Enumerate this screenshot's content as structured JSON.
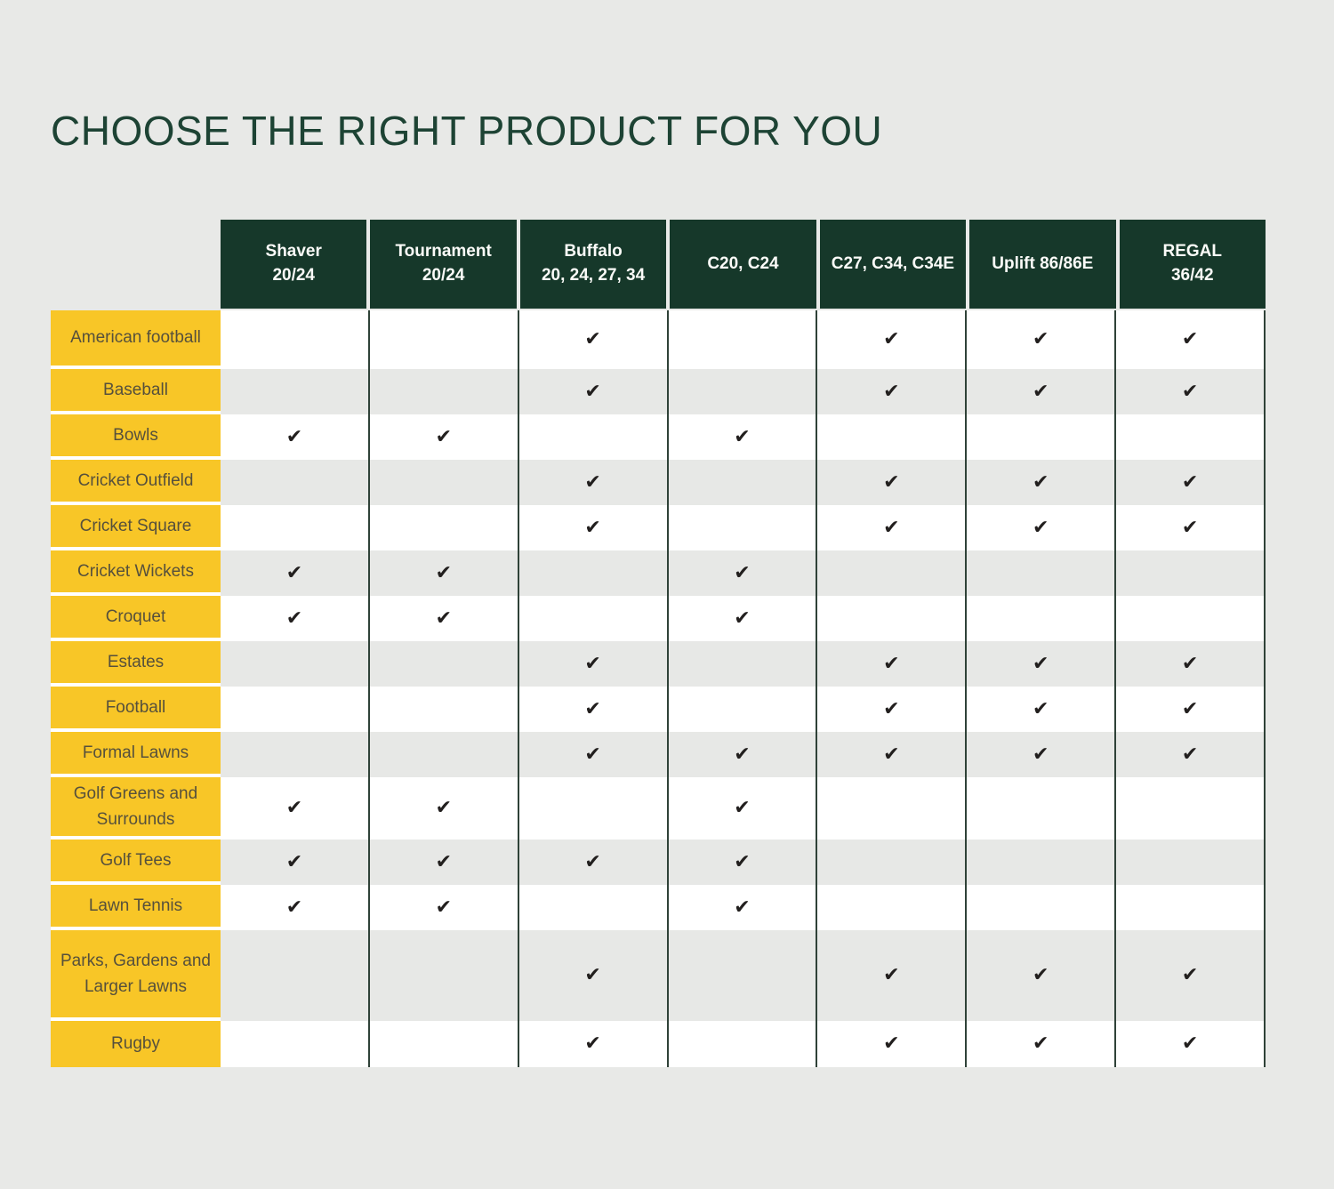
{
  "title": "CHOOSE THE RIGHT PRODUCT FOR YOU",
  "colors": {
    "page_background": "#e8e9e7",
    "header_green": "#16382a",
    "title_green": "#1d4334",
    "label_yellow": "#f8c627",
    "label_text": "#56503c",
    "row_white": "#ffffff",
    "row_gray": "#e7e8e6",
    "column_divider": "#2f4238",
    "check_black": "#221f1e",
    "header_text": "#fbfbf8"
  },
  "chart_data": {
    "type": "table",
    "title": "CHOOSE THE RIGHT PRODUCT FOR YOU",
    "check_glyph": "✔",
    "columns": [
      {
        "label": "Shaver 20/24",
        "lines": [
          "Shaver",
          "20/24"
        ]
      },
      {
        "label": "Tournament 20/24",
        "lines": [
          "Tournament",
          "20/24"
        ]
      },
      {
        "label": "Buffalo 20, 24, 27, 34",
        "lines": [
          "Buffalo",
          "20, 24, 27, 34"
        ]
      },
      {
        "label": "C20, C24",
        "lines": [
          "C20, C24"
        ]
      },
      {
        "label": "C27, C34, C34E",
        "lines": [
          "C27, C34, C34E"
        ]
      },
      {
        "label": "Uplift 86/86E",
        "lines": [
          "Uplift 86/86E"
        ]
      },
      {
        "label": "REGAL 36/42",
        "lines": [
          "REGAL",
          "36/42"
        ]
      }
    ],
    "rows": [
      {
        "label": "American football",
        "checks": [
          0,
          0,
          1,
          0,
          1,
          1,
          1
        ]
      },
      {
        "label": "Baseball",
        "checks": [
          0,
          0,
          1,
          0,
          1,
          1,
          1
        ]
      },
      {
        "label": "Bowls",
        "checks": [
          1,
          1,
          0,
          1,
          0,
          0,
          0
        ]
      },
      {
        "label": "Cricket Outfield",
        "checks": [
          0,
          0,
          1,
          0,
          1,
          1,
          1
        ]
      },
      {
        "label": "Cricket Square",
        "checks": [
          0,
          0,
          1,
          0,
          1,
          1,
          1
        ]
      },
      {
        "label": "Cricket Wickets",
        "checks": [
          1,
          1,
          0,
          1,
          0,
          0,
          0
        ]
      },
      {
        "label": "Croquet",
        "checks": [
          1,
          1,
          0,
          1,
          0,
          0,
          0
        ]
      },
      {
        "label": "Estates",
        "checks": [
          0,
          0,
          1,
          0,
          1,
          1,
          1
        ]
      },
      {
        "label": "Football",
        "checks": [
          0,
          0,
          1,
          0,
          1,
          1,
          1
        ]
      },
      {
        "label": "Formal Lawns",
        "checks": [
          0,
          0,
          1,
          1,
          1,
          1,
          1
        ]
      },
      {
        "label": "Golf Greens and Surrounds",
        "checks": [
          1,
          1,
          0,
          1,
          0,
          0,
          0
        ]
      },
      {
        "label": "Golf Tees",
        "checks": [
          1,
          1,
          1,
          1,
          0,
          0,
          0
        ]
      },
      {
        "label": "Lawn Tennis",
        "checks": [
          1,
          1,
          0,
          1,
          0,
          0,
          0
        ]
      },
      {
        "label": "Parks, Gardens and Larger Lawns",
        "checks": [
          0,
          0,
          1,
          0,
          1,
          1,
          1
        ]
      },
      {
        "label": "Rugby",
        "checks": [
          0,
          0,
          1,
          0,
          1,
          1,
          1
        ]
      }
    ]
  }
}
